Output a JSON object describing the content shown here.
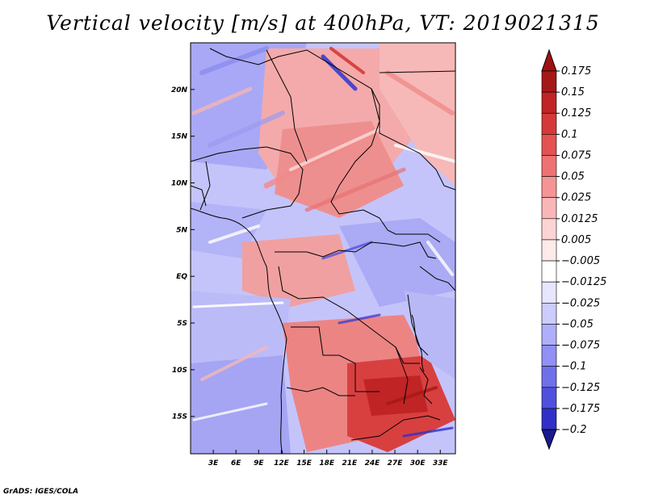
{
  "title": "Vertical velocity [m/s] at 400hPa, VT: 2019021315",
  "credit": "GrADS: IGES/COLA",
  "map": {
    "lon_range": [
      0,
      35
    ],
    "lat_range": [
      -19,
      25
    ],
    "x_ticks": [
      {
        "lon": 3,
        "label": "3E"
      },
      {
        "lon": 6,
        "label": "6E"
      },
      {
        "lon": 9,
        "label": "9E"
      },
      {
        "lon": 12,
        "label": "12E"
      },
      {
        "lon": 15,
        "label": "15E"
      },
      {
        "lon": 18,
        "label": "18E"
      },
      {
        "lon": 21,
        "label": "21E"
      },
      {
        "lon": 24,
        "label": "24E"
      },
      {
        "lon": 27,
        "label": "27E"
      },
      {
        "lon": 30,
        "label": "30E"
      },
      {
        "lon": 33,
        "label": "33E"
      }
    ],
    "y_ticks": [
      {
        "lat": 20,
        "label": "20N"
      },
      {
        "lat": 15,
        "label": "15N"
      },
      {
        "lat": 10,
        "label": "10N"
      },
      {
        "lat": 5,
        "label": "5N"
      },
      {
        "lat": 0,
        "label": "EQ"
      },
      {
        "lat": -5,
        "label": "5S"
      },
      {
        "lat": -10,
        "label": "10S"
      },
      {
        "lat": -15,
        "label": "15S"
      }
    ]
  },
  "colorbar": {
    "levels": [
      {
        "label": "0.175",
        "color": "#a51818"
      },
      {
        "label": "0.15",
        "color": "#c02424"
      },
      {
        "label": "0.125",
        "color": "#d63838"
      },
      {
        "label": "0.1",
        "color": "#e45252"
      },
      {
        "label": "0.075",
        "color": "#ee7272"
      },
      {
        "label": "0.05",
        "color": "#f59494"
      },
      {
        "label": "0.025",
        "color": "#fab6b6"
      },
      {
        "label": "0.0125",
        "color": "#fdd4d4"
      },
      {
        "label": "0.005",
        "color": "#ffeaea"
      },
      {
        "label": "−0.005",
        "color": "#ffffff"
      },
      {
        "label": "−0.0125",
        "color": "#e6e6fe"
      },
      {
        "label": "−0.025",
        "color": "#ccccfd"
      },
      {
        "label": "−0.05",
        "color": "#aeaefb"
      },
      {
        "label": "−0.075",
        "color": "#9090f5"
      },
      {
        "label": "−0.1",
        "color": "#7070ea"
      },
      {
        "label": "−0.125",
        "color": "#5050de"
      },
      {
        "label": "−0.175",
        "color": "#3030c8"
      },
      {
        "label": "−0.2",
        "color": "#1d1da8"
      }
    ],
    "top_arrow_color": "#a01010",
    "bottom_arrow_color": "#1a1a90"
  }
}
